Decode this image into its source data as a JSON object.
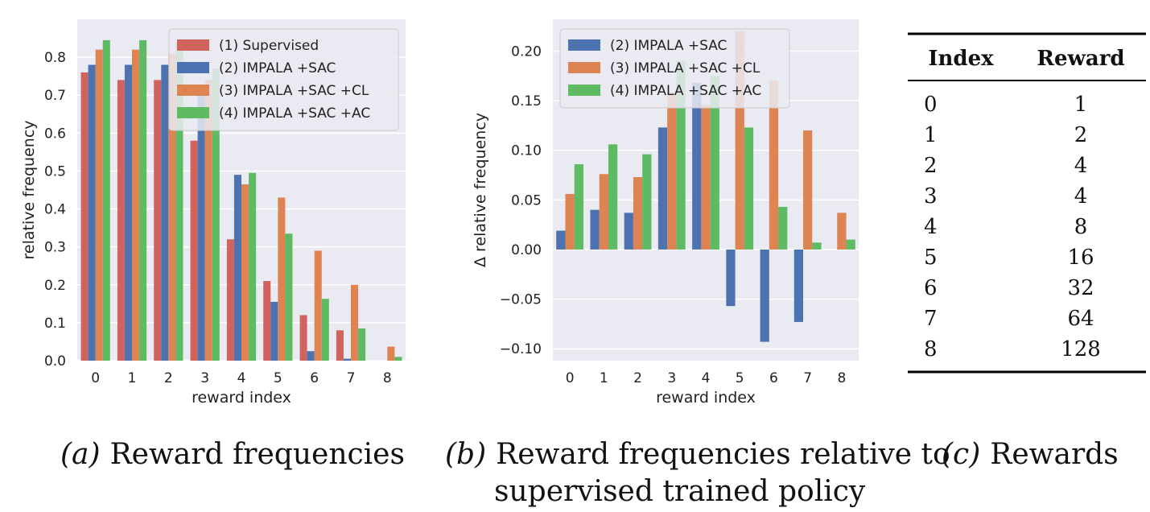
{
  "colors": {
    "background": "#eaeaf2",
    "grid": "#ffffff",
    "supervised": "#d1635f",
    "impala_sac": "#4c72b0",
    "impala_sac_cl": "#dd8452",
    "impala_sac_ac": "#5fbb63"
  },
  "chart_data": [
    {
      "type": "bar",
      "caption_label": "(a)",
      "caption_text": "Reward frequencies",
      "xlabel": "reward index",
      "ylabel": "relative frequency",
      "ylim": [
        0,
        0.9
      ],
      "yticks": [
        "0.0",
        "0.1",
        "0.2",
        "0.3",
        "0.4",
        "0.5",
        "0.6",
        "0.7",
        "0.8"
      ],
      "categories": [
        "0",
        "1",
        "2",
        "3",
        "4",
        "5",
        "6",
        "7",
        "8"
      ],
      "legend_position": "top-right",
      "series": [
        {
          "name": "(1) Supervised",
          "color_key": "supervised",
          "values": [
            0.76,
            0.74,
            0.74,
            0.58,
            0.32,
            0.21,
            0.12,
            0.08,
            0.0
          ]
        },
        {
          "name": "(2) IMPALA +SAC",
          "color_key": "impala_sac",
          "values": [
            0.78,
            0.78,
            0.78,
            0.7,
            0.49,
            0.155,
            0.025,
            0.005,
            0.0
          ]
        },
        {
          "name": "(3) IMPALA +SAC +CL",
          "color_key": "impala_sac_cl",
          "values": [
            0.82,
            0.82,
            0.81,
            0.74,
            0.465,
            0.43,
            0.29,
            0.2,
            0.037
          ]
        },
        {
          "name": "(4) IMPALA +SAC +AC",
          "color_key": "impala_sac_ac",
          "values": [
            0.845,
            0.845,
            0.84,
            0.77,
            0.495,
            0.335,
            0.163,
            0.085,
            0.01
          ]
        }
      ]
    },
    {
      "type": "bar",
      "caption_label": "(b)",
      "caption_text": "Reward frequencies relative to",
      "caption_text2": "supervised trained policy",
      "xlabel": "reward index",
      "ylabel": "Δ relative frequency",
      "ylim": [
        -0.112,
        0.232
      ],
      "yticks": [
        "0.20",
        "0.15",
        "0.10",
        "0.05",
        "0.00",
        "−0.05",
        "−0.10"
      ],
      "ytick_values": [
        0.2,
        0.15,
        0.1,
        0.05,
        0.0,
        -0.05,
        -0.1
      ],
      "categories": [
        "0",
        "1",
        "2",
        "3",
        "4",
        "5",
        "6",
        "7",
        "8"
      ],
      "legend_position": "top-left",
      "series": [
        {
          "name": "(2) IMPALA +SAC",
          "color_key": "impala_sac",
          "values": [
            0.019,
            0.04,
            0.037,
            0.123,
            0.168,
            -0.057,
            -0.093,
            -0.073,
            0.0
          ]
        },
        {
          "name": "(3) IMPALA +SAC +CL",
          "color_key": "impala_sac_cl",
          "values": [
            0.056,
            0.076,
            0.073,
            0.158,
            0.146,
            0.22,
            0.17,
            0.12,
            0.037
          ]
        },
        {
          "name": "(4) IMPALA +SAC +AC",
          "color_key": "impala_sac_ac",
          "values": [
            0.086,
            0.106,
            0.096,
            0.19,
            0.175,
            0.123,
            0.043,
            0.007,
            0.01
          ]
        }
      ]
    },
    {
      "type": "table",
      "caption_label": "(c)",
      "caption_text": "Rewards",
      "columns": [
        "Index",
        "Reward"
      ],
      "rows": [
        [
          "0",
          "1"
        ],
        [
          "1",
          "2"
        ],
        [
          "2",
          "4"
        ],
        [
          "3",
          "4"
        ],
        [
          "4",
          "8"
        ],
        [
          "5",
          "16"
        ],
        [
          "6",
          "32"
        ],
        [
          "7",
          "64"
        ],
        [
          "8",
          "128"
        ]
      ]
    }
  ]
}
